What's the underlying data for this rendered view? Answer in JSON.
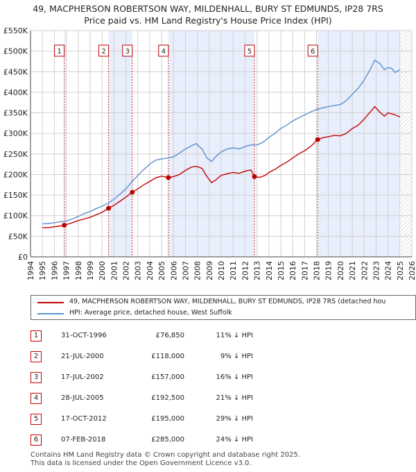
{
  "title": {
    "line1": "49, MACPHERSON ROBERTSON WAY, MILDENHALL, BURY ST EDMUNDS, IP28 7RS",
    "line2": "Price paid vs. HM Land Registry's House Price Index (HPI)"
  },
  "colors": {
    "property": "#c00000",
    "hpi": "#5b8fd0",
    "shade": "#e8eefb",
    "grid": "#d0d0d0"
  },
  "chart_data": {
    "type": "line",
    "title": "Price paid vs. HM Land Registry's House Price Index (HPI)",
    "xlabel": "",
    "ylabel": "",
    "xlim": [
      1994,
      2026
    ],
    "ylim": [
      0,
      550000
    ],
    "x_ticks": [
      1994,
      1995,
      1996,
      1997,
      1998,
      1999,
      2000,
      2001,
      2002,
      2003,
      2004,
      2005,
      2006,
      2007,
      2008,
      2009,
      2010,
      2011,
      2012,
      2013,
      2014,
      2015,
      2016,
      2017,
      2018,
      2019,
      2020,
      2021,
      2022,
      2023,
      2024,
      2025,
      2026
    ],
    "x_tick_labels": [
      "1994",
      "1995",
      "1996",
      "1997",
      "1998",
      "1999",
      "2000",
      "2001",
      "2002",
      "2003",
      "2004",
      "2005",
      "2006",
      "2007",
      "2008",
      "2009",
      "2010",
      "2011",
      "2012",
      "2013",
      "2014",
      "2015",
      "2016",
      "2017",
      "2018",
      "2019",
      "2020",
      "2021",
      "2022",
      "2023",
      "2024",
      "2025",
      "2026"
    ],
    "y_ticks": [
      0,
      50000,
      100000,
      150000,
      200000,
      250000,
      300000,
      350000,
      400000,
      450000,
      500000,
      550000
    ],
    "y_tick_labels": [
      "£0",
      "£50K",
      "£100K",
      "£150K",
      "£200K",
      "£250K",
      "£300K",
      "£350K",
      "£400K",
      "£450K",
      "£500K",
      "£550K"
    ],
    "shaded_ranges": [
      [
        1996.83,
        1997.0
      ],
      [
        2000.55,
        2002.55
      ],
      [
        2005.57,
        2012.79
      ],
      [
        2018.1,
        2025.0
      ]
    ],
    "series": [
      {
        "name": "49, MACPHERSON ROBERTSON WAY, MILDENHALL, BURY ST EDMUNDS, IP28 7RS (detached house)",
        "key": "property",
        "x": [
          1995.0,
          1995.5,
          1996.0,
          1996.5,
          1996.83,
          1997.2,
          1997.6,
          1998.0,
          1998.5,
          1999.0,
          1999.5,
          2000.0,
          2000.55,
          2001.0,
          2001.5,
          2002.0,
          2002.54,
          2003.0,
          2003.5,
          2004.0,
          2004.5,
          2005.0,
          2005.57,
          2006.0,
          2006.5,
          2007.0,
          2007.5,
          2007.9,
          2008.4,
          2008.8,
          2009.2,
          2009.6,
          2010.0,
          2010.5,
          2011.0,
          2011.5,
          2012.0,
          2012.5,
          2012.79,
          2013.2,
          2013.7,
          2014.0,
          2014.5,
          2015.0,
          2015.5,
          2016.0,
          2016.5,
          2017.0,
          2017.5,
          2018.1,
          2018.6,
          2019.0,
          2019.5,
          2020.0,
          2020.5,
          2021.0,
          2021.5,
          2022.0,
          2022.5,
          2022.9,
          2023.3,
          2023.7,
          2024.0,
          2024.5,
          2025.0
        ],
        "y": [
          71000,
          71000,
          73000,
          75000,
          76850,
          80000,
          84000,
          88000,
          92000,
          96000,
          102000,
          108000,
          118000,
          125000,
          135000,
          145000,
          157000,
          165000,
          175000,
          183000,
          192000,
          196000,
          192500,
          195000,
          200000,
          210000,
          218000,
          220000,
          215000,
          195000,
          180000,
          188000,
          198000,
          202000,
          205000,
          203000,
          208000,
          211000,
          195000,
          193000,
          198000,
          205000,
          212000,
          222000,
          230000,
          240000,
          250000,
          258000,
          268000,
          285000,
          290000,
          292000,
          295000,
          294000,
          300000,
          312000,
          320000,
          335000,
          352000,
          365000,
          352000,
          342000,
          350000,
          346000,
          340000
        ]
      },
      {
        "name": "HPI: Average price, detached house, West Suffolk",
        "key": "hpi",
        "x": [
          1995.0,
          1995.5,
          1996.0,
          1996.5,
          1997.0,
          1997.5,
          1998.0,
          1998.5,
          1999.0,
          1999.5,
          2000.0,
          2000.5,
          2001.0,
          2001.5,
          2002.0,
          2002.5,
          2003.0,
          2003.5,
          2004.0,
          2004.5,
          2005.0,
          2005.5,
          2006.0,
          2006.5,
          2007.0,
          2007.5,
          2007.9,
          2008.4,
          2008.8,
          2009.2,
          2009.6,
          2010.0,
          2010.5,
          2011.0,
          2011.5,
          2012.0,
          2012.5,
          2013.0,
          2013.5,
          2014.0,
          2014.5,
          2015.0,
          2015.5,
          2016.0,
          2016.5,
          2017.0,
          2017.5,
          2018.0,
          2018.5,
          2019.0,
          2019.5,
          2020.0,
          2020.5,
          2021.0,
          2021.5,
          2022.0,
          2022.5,
          2022.9,
          2023.3,
          2023.7,
          2024.0,
          2024.3,
          2024.6,
          2025.0
        ],
        "y": [
          80000,
          81000,
          83000,
          85000,
          87000,
          92000,
          98000,
          105000,
          110000,
          117000,
          123000,
          130000,
          140000,
          152000,
          165000,
          182000,
          198000,
          212000,
          225000,
          235000,
          238000,
          240000,
          243000,
          252000,
          262000,
          270000,
          275000,
          262000,
          240000,
          232000,
          245000,
          255000,
          262000,
          265000,
          262000,
          268000,
          272000,
          272000,
          278000,
          290000,
          300000,
          312000,
          320000,
          330000,
          338000,
          345000,
          352000,
          358000,
          362000,
          365000,
          368000,
          370000,
          380000,
          395000,
          410000,
          430000,
          455000,
          478000,
          470000,
          455000,
          460000,
          458000,
          448000,
          455000
        ]
      }
    ],
    "sales": [
      {
        "num": "1",
        "x": 1996.83,
        "y": 76850
      },
      {
        "num": "2",
        "x": 2000.55,
        "y": 118000
      },
      {
        "num": "3",
        "x": 2002.54,
        "y": 157000
      },
      {
        "num": "4",
        "x": 2005.57,
        "y": 192500
      },
      {
        "num": "5",
        "x": 2012.79,
        "y": 195000
      },
      {
        "num": "6",
        "x": 2018.1,
        "y": 285000
      }
    ]
  },
  "legend": {
    "property_label": "49, MACPHERSON ROBERTSON WAY, MILDENHALL, BURY ST EDMUNDS, IP28 7RS (detached hou",
    "hpi_label": "HPI: Average price, detached house, West Suffolk"
  },
  "sales_table": [
    {
      "num": "1",
      "date": "31-OCT-1996",
      "price": "£76,850",
      "hpi": "11% ↓ HPI"
    },
    {
      "num": "2",
      "date": "21-JUL-2000",
      "price": "£118,000",
      "hpi": "9% ↓ HPI"
    },
    {
      "num": "3",
      "date": "17-JUL-2002",
      "price": "£157,000",
      "hpi": "16% ↓ HPI"
    },
    {
      "num": "4",
      "date": "28-JUL-2005",
      "price": "£192,500",
      "hpi": "21% ↓ HPI"
    },
    {
      "num": "5",
      "date": "17-OCT-2012",
      "price": "£195,000",
      "hpi": "29% ↓ HPI"
    },
    {
      "num": "6",
      "date": "07-FEB-2018",
      "price": "£285,000",
      "hpi": "24% ↓ HPI"
    }
  ],
  "footer": {
    "line1": "Contains HM Land Registry data © Crown copyright and database right 2025.",
    "line2": "This data is licensed under the Open Government Licence v3.0."
  }
}
